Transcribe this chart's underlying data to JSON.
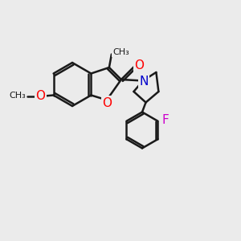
{
  "bg_color": "#ebebeb",
  "bond_color": "#1a1a1a",
  "bond_width": 1.8,
  "atom_colors": {
    "O": "#ff0000",
    "N": "#0000cc",
    "F": "#cc00cc",
    "C": "#1a1a1a"
  },
  "font_size": 10,
  "fig_size": [
    3.0,
    3.0
  ],
  "dpi": 100,
  "xlim": [
    0,
    10
  ],
  "ylim": [
    0,
    10
  ]
}
